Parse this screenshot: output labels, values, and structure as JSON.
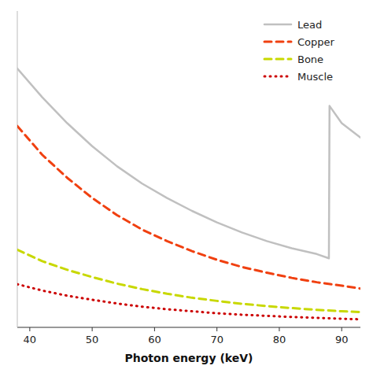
{
  "chart_data": {
    "type": "line",
    "xlabel": "Photon energy (keV)",
    "xlim": [
      38,
      93
    ],
    "xticks": [
      40,
      50,
      60,
      70,
      80,
      90
    ],
    "ylim": [
      0.5,
      11.5
    ],
    "yticks": [],
    "tick_labels": "x",
    "legend": "upper right",
    "series": [
      {
        "name": "Lead",
        "color": "#c0c0c0",
        "line_style": "solid",
        "x": [
          38,
          42,
          46,
          50,
          54,
          58,
          62,
          66,
          70,
          74,
          78,
          82,
          86,
          87.95,
          88.05,
          90,
          93
        ],
        "values": [
          9.5,
          8.5,
          7.6,
          6.8,
          6.1,
          5.5,
          5.0,
          4.55,
          4.15,
          3.8,
          3.5,
          3.25,
          3.05,
          2.9,
          8.2,
          7.6,
          7.1
        ]
      },
      {
        "name": "Copper",
        "color": "#f04010",
        "line_style": "dashed",
        "x": [
          38,
          42,
          46,
          50,
          54,
          58,
          62,
          66,
          70,
          74,
          78,
          82,
          86,
          90,
          93
        ],
        "values": [
          7.5,
          6.5,
          5.7,
          5.0,
          4.4,
          3.9,
          3.5,
          3.15,
          2.85,
          2.6,
          2.4,
          2.22,
          2.07,
          1.95,
          1.85
        ]
      },
      {
        "name": "Bone",
        "color": "#c8d800",
        "line_style": "dashed",
        "x": [
          38,
          42,
          46,
          50,
          54,
          58,
          62,
          66,
          70,
          74,
          78,
          82,
          86,
          90,
          93
        ],
        "values": [
          3.2,
          2.8,
          2.5,
          2.25,
          2.02,
          1.83,
          1.67,
          1.53,
          1.42,
          1.32,
          1.24,
          1.17,
          1.11,
          1.06,
          1.03
        ]
      },
      {
        "name": "Muscle",
        "color": "#cc0000",
        "line_style": "dotted",
        "x": [
          38,
          42,
          46,
          50,
          54,
          58,
          62,
          66,
          70,
          74,
          78,
          82,
          86,
          90,
          93
        ],
        "values": [
          2.0,
          1.78,
          1.6,
          1.46,
          1.33,
          1.22,
          1.13,
          1.06,
          0.99,
          0.94,
          0.9,
          0.86,
          0.83,
          0.8,
          0.78
        ]
      }
    ]
  }
}
